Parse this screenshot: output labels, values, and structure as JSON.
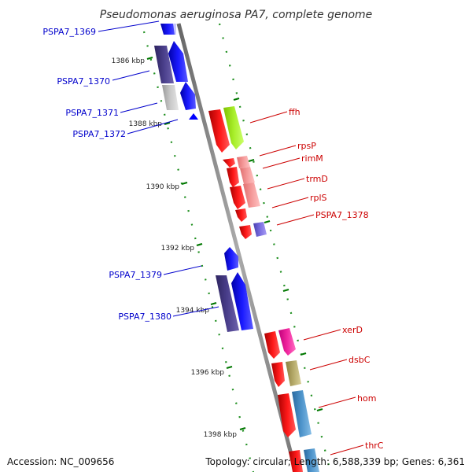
{
  "title": "Pseudomonas aeruginosa PA7, complete genome",
  "ticks": [
    "1386 kbp",
    "1388 kbp",
    "1390 kbp",
    "1392 kbp",
    "1394 kbp",
    "1396 kbp",
    "1398 kbp"
  ],
  "genes": [
    {
      "label": "PSPA7_1369",
      "strand": "minus",
      "color": "#0000ff"
    },
    {
      "label": "PSPA7_1370",
      "strand": "minus",
      "color": "#0000ff"
    },
    {
      "label": "PSPA7_1371",
      "strand": "minus",
      "color": "#0000ff"
    },
    {
      "label": "PSPA7_1372",
      "strand": "minus",
      "color": "#0000ff"
    },
    {
      "label": "ffh",
      "strand": "plus",
      "color": "#ff0000"
    },
    {
      "label": "rpsP",
      "strand": "plus",
      "color": "#ff0000"
    },
    {
      "label": "rimM",
      "strand": "plus",
      "color": "#ff0000"
    },
    {
      "label": "trmD",
      "strand": "plus",
      "color": "#ff0000"
    },
    {
      "label": "rplS",
      "strand": "plus",
      "color": "#ff0000"
    },
    {
      "label": "PSPA7_1378",
      "strand": "plus",
      "color": "#ff0000"
    },
    {
      "label": "PSPA7_1379",
      "strand": "minus",
      "color": "#0000ff"
    },
    {
      "label": "PSPA7_1380",
      "strand": "minus",
      "color": "#0000ff"
    },
    {
      "label": "xerD",
      "strand": "plus",
      "color": "#ff0000"
    },
    {
      "label": "dsbC",
      "strand": "plus",
      "color": "#ff0000"
    },
    {
      "label": "hom",
      "strand": "plus",
      "color": "#ff0000"
    },
    {
      "label": "thrC",
      "strand": "plus",
      "color": "#ff0000"
    }
  ],
  "footer": {
    "accession": "Accession: NC_009656",
    "summary": "Topology: circular; Length: 6,588,339 bp; Genes: 6,361"
  },
  "colors": {
    "backbone": "#888888",
    "tick": "#007700",
    "plus_label": "#cc0000",
    "minus_label": "#0000cc"
  }
}
